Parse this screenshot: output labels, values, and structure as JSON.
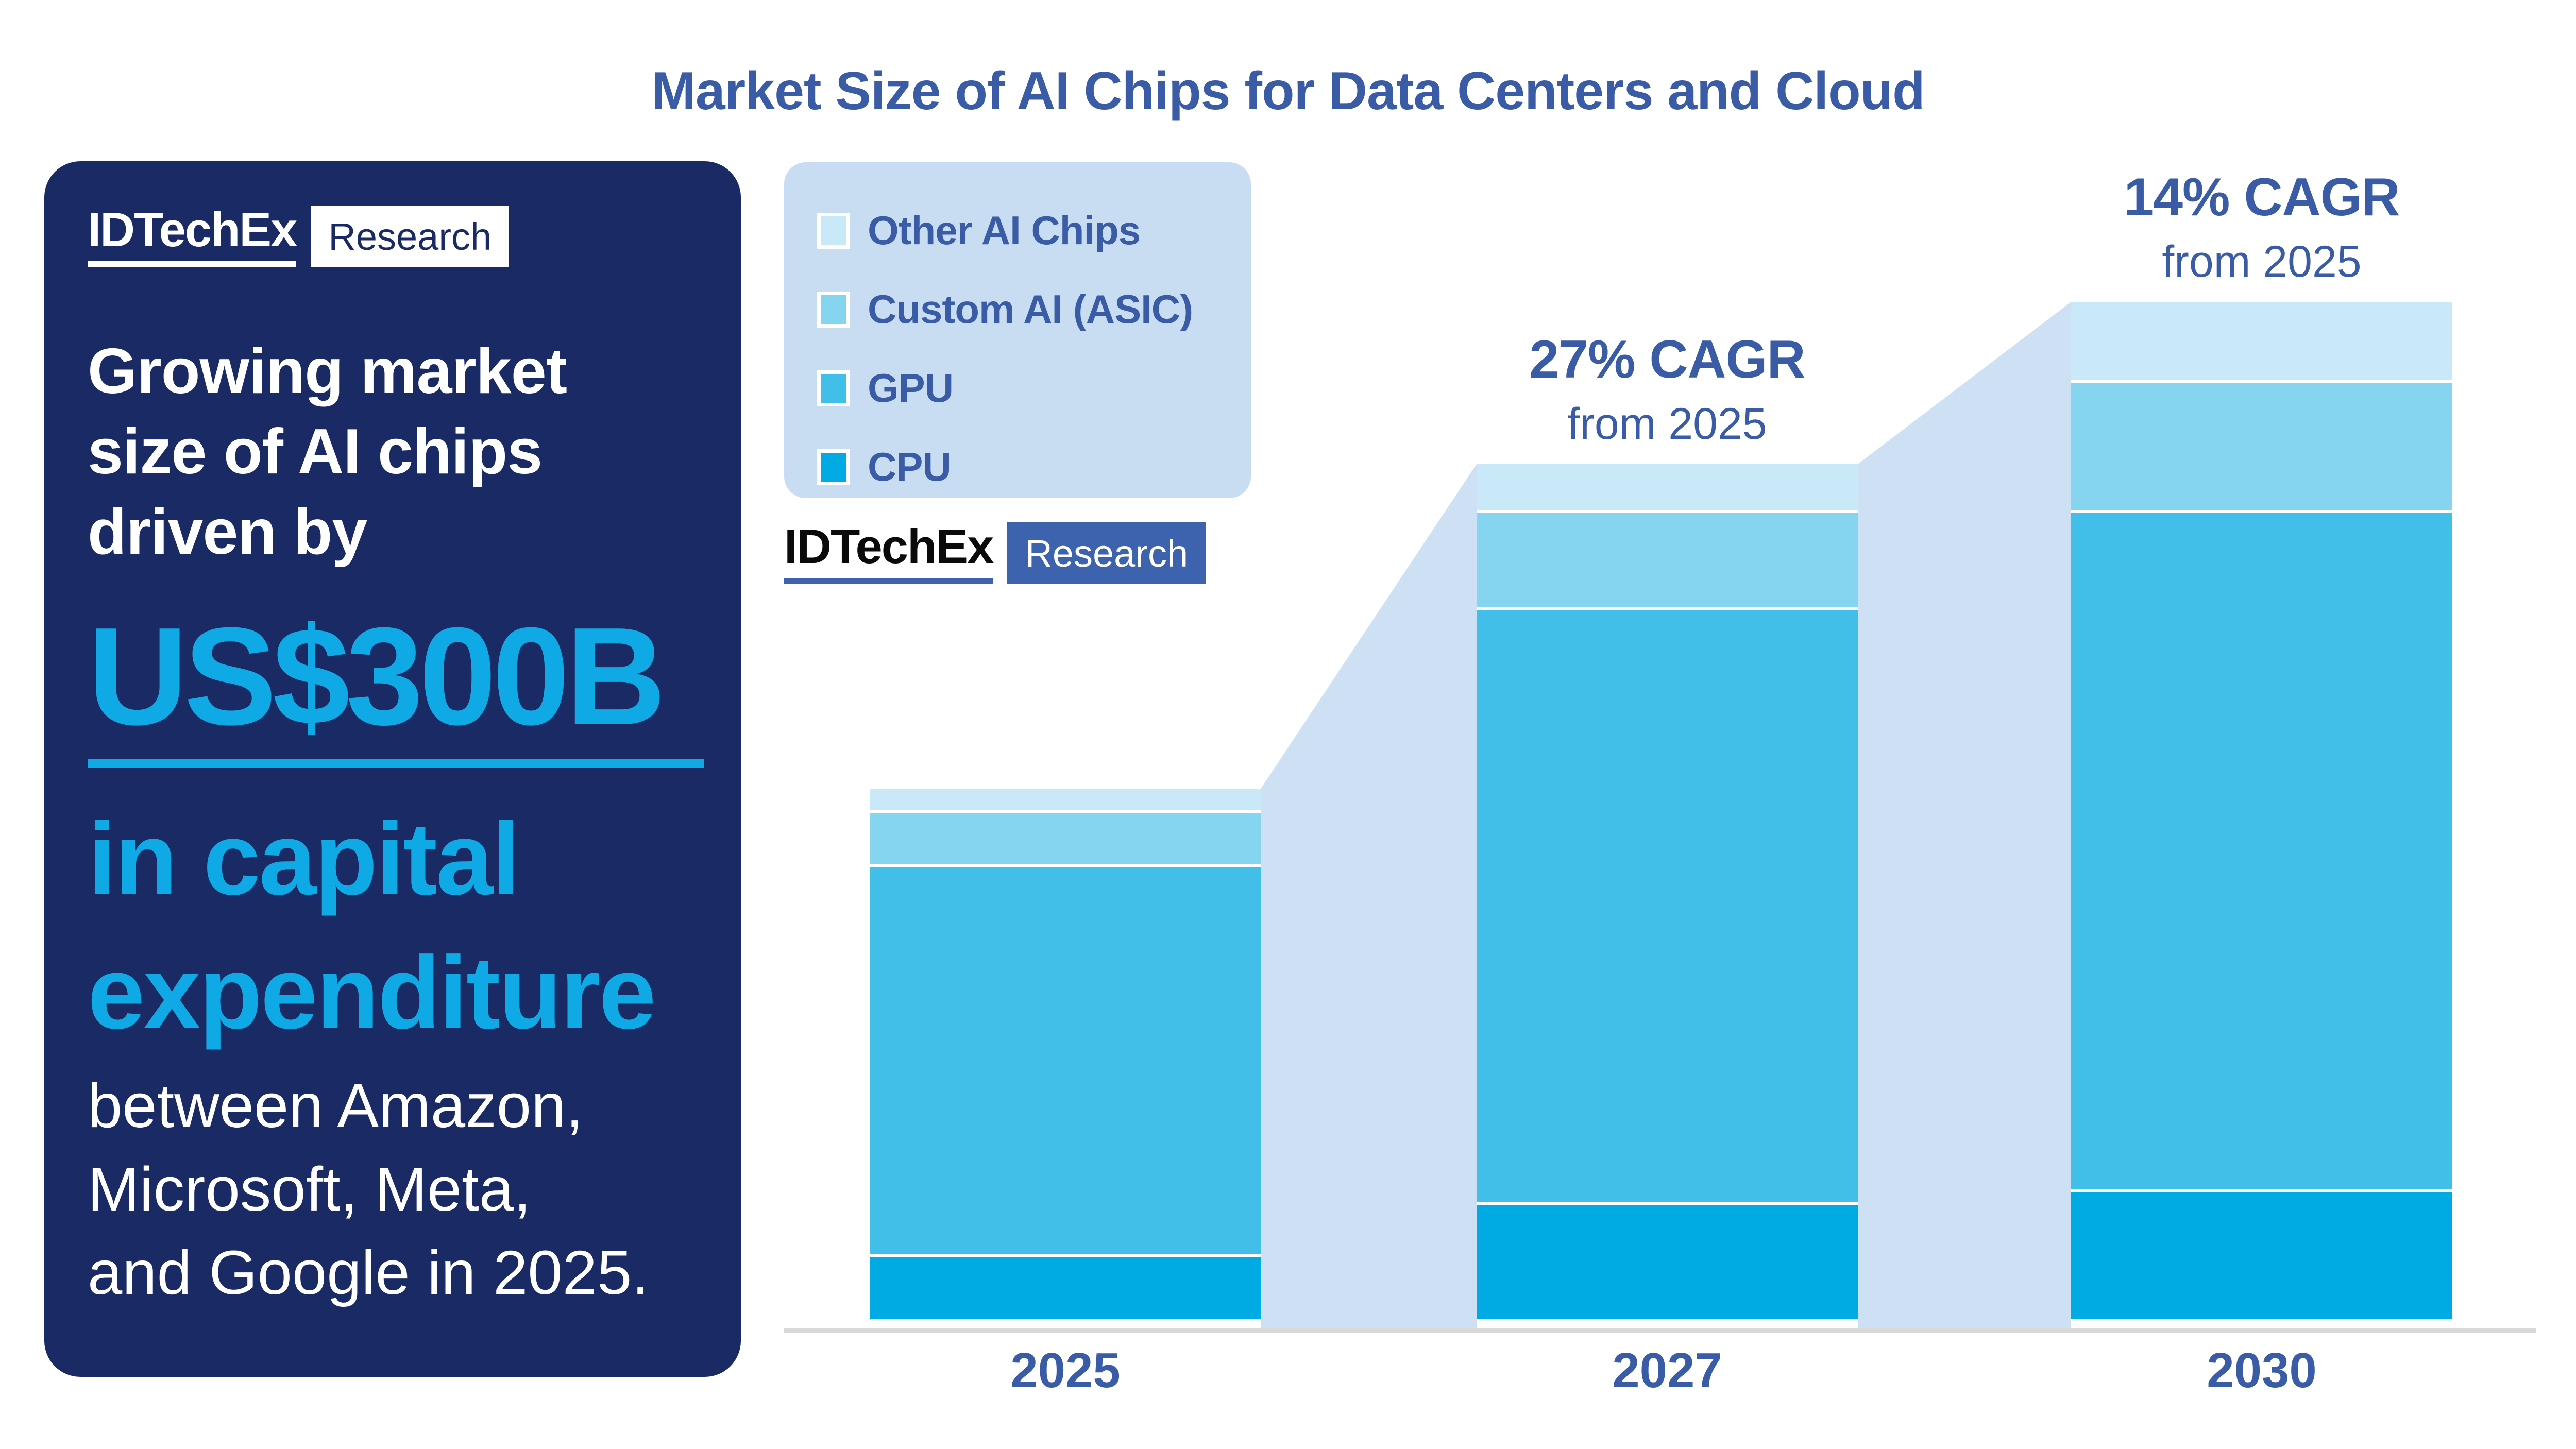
{
  "title": "Market Size of AI Chips for Data Centers and Cloud",
  "side_panel": {
    "logo": {
      "brand": "IDTechEx",
      "suffix": "Research"
    },
    "headline": "Growing market\nsize of AI chips\ndriven by",
    "highlight_value": "US$300B",
    "highlight_caption": "in capital\nexpenditure",
    "body": "between Amazon,\nMicrosoft, Meta,\nand Google in 2025."
  },
  "watermark": {
    "brand": "IDTechEx",
    "suffix": "Research"
  },
  "legend": {
    "items": [
      {
        "label": "Other AI Chips",
        "color": "#C9E8F8"
      },
      {
        "label": "Custom AI (ASIC)",
        "color": "#85D5F1"
      },
      {
        "label": "GPU",
        "color": "#41BFE8"
      },
      {
        "label": "CPU",
        "color": "#00ABE4"
      }
    ]
  },
  "chart_data": {
    "type": "bar",
    "subtype": "stacked",
    "title": "Market Size of AI Chips for Data Centers and Cloud",
    "categories": [
      "2025",
      "2027",
      "2030"
    ],
    "series": [
      {
        "name": "CPU",
        "color": "#00ABE4",
        "values": [
          12,
          21.5,
          24
        ]
      },
      {
        "name": "GPU",
        "color": "#41BFE8",
        "values": [
          72,
          110,
          125.5
        ]
      },
      {
        "name": "Custom AI (ASIC)",
        "color": "#85D5F1",
        "values": [
          10,
          18,
          24
        ]
      },
      {
        "name": "Other AI Chips",
        "color": "#C9E8F8",
        "values": [
          4,
          8.5,
          14.5
        ]
      }
    ],
    "totals": [
      98,
      158,
      188
    ],
    "value_basis": "relative units estimated from bar heights; 2025 total ≈ 100 (no numeric y-axis shown in figure)",
    "annotations": [
      {
        "category": "2027",
        "cagr": "27% CAGR",
        "subtitle": "from 2025"
      },
      {
        "category": "2030",
        "cagr": "14% CAGR",
        "subtitle": "from 2025"
      }
    ],
    "xlabel": "",
    "ylabel": "",
    "grid": false,
    "y_axis_visible": false,
    "legend_position": "upper-left"
  },
  "colors": {
    "navy_panel": "#1A2A64",
    "accent_cyan": "#0FAAE6",
    "text_blue": "#3A5BA6",
    "legend_bg": "#C8DCF2",
    "connector": "#CDE0F4",
    "axis_line": "#D9D9D9",
    "research_box_blue": "#3D63AE",
    "background": "#FFFFFF"
  }
}
